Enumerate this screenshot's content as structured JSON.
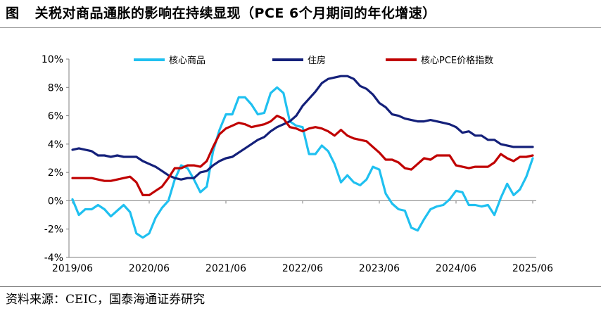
{
  "title": {
    "figure_label": "图",
    "text": "关税对商品通胀的影响在持续显现（PCE 6个月期间的年化增速）"
  },
  "source": "资料来源：CEIC，国泰海通证券研究",
  "chart_data": {
    "type": "line",
    "xlabel": "",
    "ylabel": "",
    "ylim": [
      -4,
      10
    ],
    "yticks": [
      "-4%",
      "-2%",
      "0%",
      "2%",
      "4%",
      "6%",
      "8%",
      "10%"
    ],
    "yticks_values": [
      -4,
      -2,
      0,
      2,
      4,
      6,
      8,
      10
    ],
    "xticks": [
      "2019/06",
      "2020/06",
      "2021/06",
      "2022/06",
      "2023/06",
      "2024/06",
      "2025/06"
    ],
    "legend_position": "top",
    "x": [
      "2019/06",
      "2019/07",
      "2019/08",
      "2019/09",
      "2019/10",
      "2019/11",
      "2019/12",
      "2020/01",
      "2020/02",
      "2020/03",
      "2020/04",
      "2020/05",
      "2020/06",
      "2020/07",
      "2020/08",
      "2020/09",
      "2020/10",
      "2020/11",
      "2020/12",
      "2021/01",
      "2021/02",
      "2021/03",
      "2021/04",
      "2021/05",
      "2021/06",
      "2021/07",
      "2021/08",
      "2021/09",
      "2021/10",
      "2021/11",
      "2021/12",
      "2022/01",
      "2022/02",
      "2022/03",
      "2022/04",
      "2022/05",
      "2022/06",
      "2022/07",
      "2022/08",
      "2022/09",
      "2022/10",
      "2022/11",
      "2022/12",
      "2023/01",
      "2023/02",
      "2023/03",
      "2023/04",
      "2023/05",
      "2023/06",
      "2023/07",
      "2023/08",
      "2023/09",
      "2023/10",
      "2023/11",
      "2023/12",
      "2024/01",
      "2024/02",
      "2024/03",
      "2024/04",
      "2024/05",
      "2024/06",
      "2024/07",
      "2024/08",
      "2024/09",
      "2024/10",
      "2024/11",
      "2024/12",
      "2025/01",
      "2025/02",
      "2025/03",
      "2025/04",
      "2025/05",
      "2025/06"
    ],
    "series": [
      {
        "name": "核心商品",
        "color": "#1fc0f0",
        "values": [
          0.1,
          -1.0,
          -0.6,
          -0.6,
          -0.3,
          -0.6,
          -1.1,
          -0.7,
          -0.3,
          -0.8,
          -2.3,
          -2.6,
          -2.3,
          -1.2,
          -0.5,
          0.0,
          1.5,
          2.5,
          2.3,
          1.5,
          0.6,
          1.0,
          3.5,
          5.0,
          6.1,
          6.1,
          7.3,
          7.3,
          6.8,
          6.1,
          6.2,
          7.6,
          8.0,
          7.6,
          5.6,
          5.3,
          5.2,
          3.3,
          3.3,
          3.9,
          3.5,
          2.6,
          1.3,
          1.8,
          1.3,
          1.1,
          1.5,
          2.4,
          2.2,
          0.5,
          -0.2,
          -0.6,
          -0.7,
          -1.9,
          -2.1,
          -1.3,
          -0.6,
          -0.4,
          -0.3,
          0.1,
          0.7,
          0.6,
          -0.3,
          -0.3,
          -0.4,
          -0.3,
          -1.0,
          0.2,
          1.2,
          0.4,
          0.8,
          1.7,
          3.0
        ]
      },
      {
        "name": "住房",
        "color": "#14207a",
        "values": [
          3.6,
          3.7,
          3.6,
          3.5,
          3.2,
          3.2,
          3.1,
          3.2,
          3.1,
          3.1,
          3.1,
          2.8,
          2.6,
          2.4,
          2.1,
          1.8,
          1.6,
          1.5,
          1.6,
          1.6,
          2.0,
          2.1,
          2.5,
          2.8,
          3.0,
          3.1,
          3.4,
          3.7,
          4.0,
          4.3,
          4.5,
          4.9,
          5.2,
          5.4,
          5.6,
          6.0,
          6.7,
          7.2,
          7.7,
          8.3,
          8.6,
          8.7,
          8.8,
          8.8,
          8.6,
          8.1,
          7.9,
          7.5,
          6.9,
          6.6,
          6.1,
          6.0,
          5.8,
          5.7,
          5.6,
          5.6,
          5.7,
          5.6,
          5.5,
          5.4,
          5.2,
          4.8,
          4.9,
          4.6,
          4.6,
          4.3,
          4.3,
          4.0,
          3.9,
          3.8,
          3.8,
          3.8,
          3.8
        ]
      },
      {
        "name": "核心PCE价格指数",
        "color": "#c00000",
        "values": [
          1.6,
          1.6,
          1.6,
          1.6,
          1.5,
          1.4,
          1.4,
          1.5,
          1.6,
          1.7,
          1.3,
          0.4,
          0.4,
          0.7,
          1.0,
          1.6,
          2.3,
          2.3,
          2.5,
          2.5,
          2.4,
          2.8,
          3.8,
          4.7,
          5.1,
          5.3,
          5.5,
          5.4,
          5.2,
          5.3,
          5.4,
          5.6,
          6.0,
          5.8,
          5.2,
          5.1,
          4.9,
          5.1,
          5.2,
          5.1,
          4.9,
          4.6,
          5.0,
          4.6,
          4.4,
          4.3,
          4.2,
          3.8,
          3.4,
          2.9,
          2.9,
          2.7,
          2.3,
          2.2,
          2.6,
          3.0,
          2.9,
          3.2,
          3.2,
          3.2,
          2.5,
          2.4,
          2.3,
          2.4,
          2.4,
          2.4,
          2.7,
          3.3,
          3.0,
          2.8,
          3.1,
          3.1,
          3.2
        ]
      }
    ]
  }
}
